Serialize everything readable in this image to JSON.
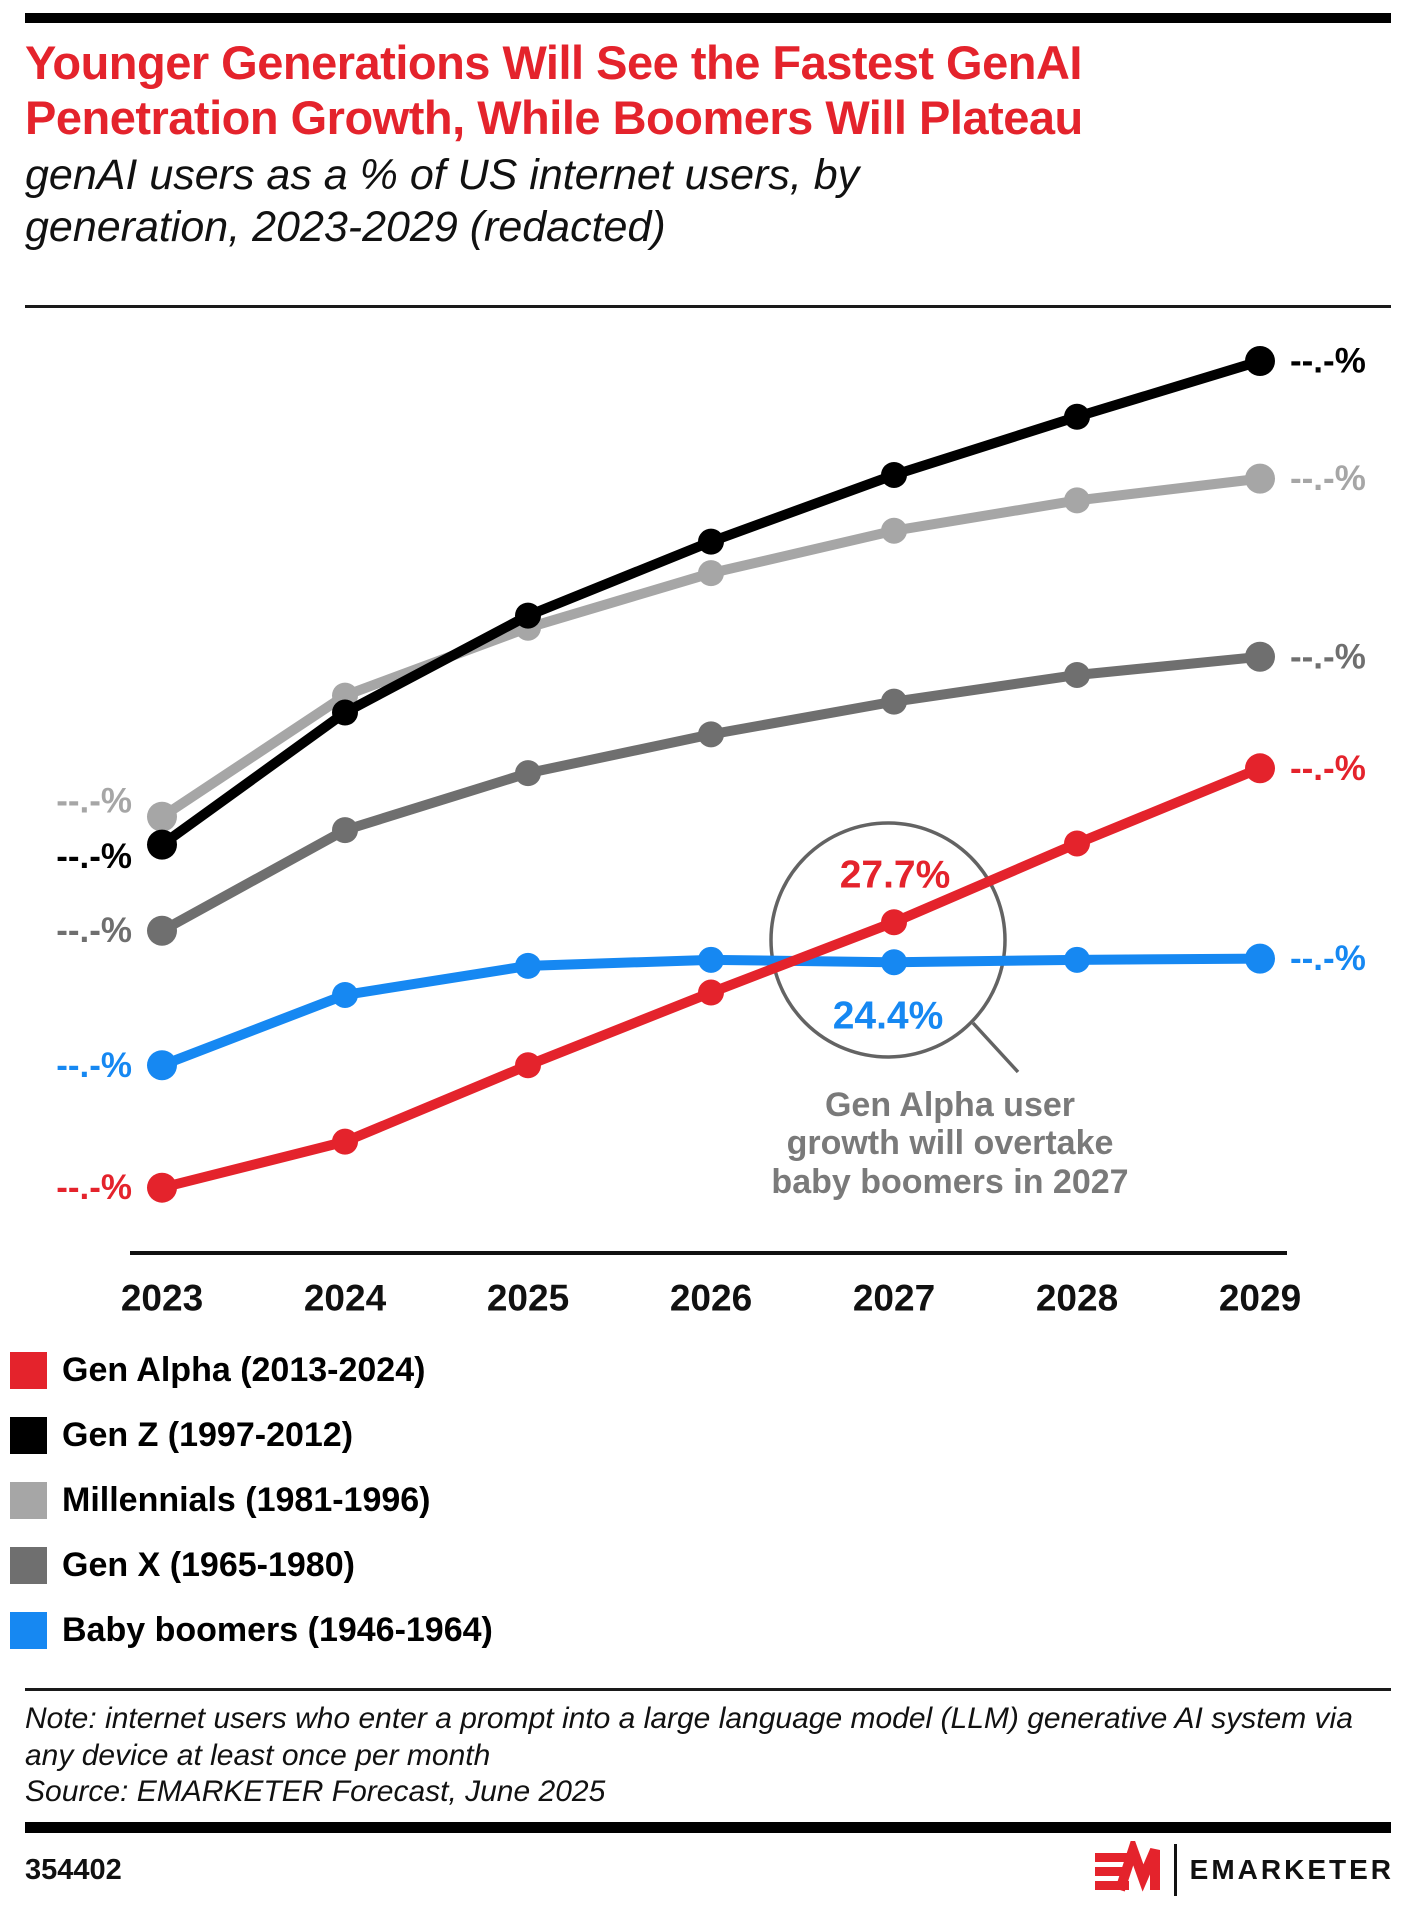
{
  "header": {
    "title": "Younger Generations Will See the Fastest GenAI Penetration Growth, While Boomers Will Plateau",
    "subtitle": "genAI users as a % of US internet users, by generation, 2023-2029 (redacted)"
  },
  "chart_data": {
    "type": "line",
    "x": [
      "2023",
      "2024",
      "2025",
      "2026",
      "2027",
      "2028",
      "2029"
    ],
    "unit": "%",
    "ylim": [
      0,
      80
    ],
    "grid": false,
    "legend_position": "bottom-left",
    "redacted_label": "--.-%",
    "series": [
      {
        "key": "gen_alpha",
        "name": "Gen Alpha (2013-2024)",
        "color": "#e4232c",
        "values": [
          5.8,
          9.6,
          15.9,
          21.9,
          27.7,
          34.2,
          40.4
        ]
      },
      {
        "key": "gen_z",
        "name": "Gen Z (1997-2012)",
        "color": "#000000",
        "values": [
          34.1,
          45.0,
          53.0,
          59.1,
          64.6,
          69.4,
          74.0
        ]
      },
      {
        "key": "millennials",
        "name": "Millennials (1981-1996)",
        "color": "#a6a6a6",
        "values": [
          36.4,
          46.4,
          52.0,
          56.5,
          60.0,
          62.5,
          64.3
        ]
      },
      {
        "key": "gen_x",
        "name": "Gen X (1965-1980)",
        "color": "#6f6f6f",
        "values": [
          27.0,
          35.3,
          40.0,
          43.2,
          45.9,
          48.1,
          49.6
        ]
      },
      {
        "key": "baby_boomers",
        "name": "Baby boomers (1946-1964)",
        "color": "#1688f2",
        "values": [
          15.9,
          21.7,
          24.1,
          24.6,
          24.4,
          24.6,
          24.7
        ]
      }
    ],
    "callouts": [
      {
        "series": "gen_alpha",
        "x": "2027",
        "label": "27.7%"
      },
      {
        "series": "baby_boomers",
        "x": "2027",
        "label": "24.4%"
      }
    ]
  },
  "annotation": {
    "gen_alpha_2027": "27.7%",
    "baby_boomers_2027": "24.4%",
    "caption_lines": [
      "Gen Alpha user",
      "growth will overtake",
      "baby boomers in 2027"
    ]
  },
  "legend": {
    "items": [
      {
        "label": "Gen Alpha (2013-2024)",
        "color": "#e4232c"
      },
      {
        "label": "Gen Z (1997-2012)",
        "color": "#000000"
      },
      {
        "label": "Millennials (1981-1996)",
        "color": "#a6a6a6"
      },
      {
        "label": "Gen X (1965-1980)",
        "color": "#6f6f6f"
      },
      {
        "label": "Baby boomers (1946-1964)",
        "color": "#1688f2"
      }
    ]
  },
  "note": {
    "text": "Note: internet users who enter a prompt into a large language model (LLM) generative AI system via any device at least once per month",
    "source": "Source: EMARKETER Forecast, June 2025"
  },
  "footer": {
    "chart_id": "354402",
    "brand": "EMARKETER"
  }
}
